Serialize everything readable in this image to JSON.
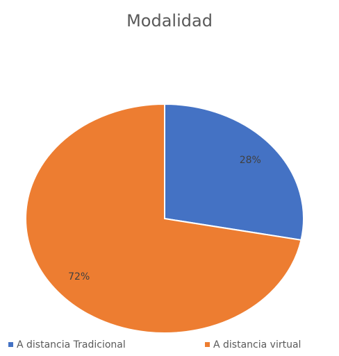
{
  "chart_data": {
    "type": "pie",
    "title": "Modalidad",
    "categories": [
      "A distancia Tradicional",
      "A distancia virtual"
    ],
    "values": [
      28,
      72
    ],
    "value_labels": [
      "28%",
      "72%"
    ],
    "colors": [
      "#4472c4",
      "#ed7d31"
    ],
    "legend": "bottom"
  }
}
